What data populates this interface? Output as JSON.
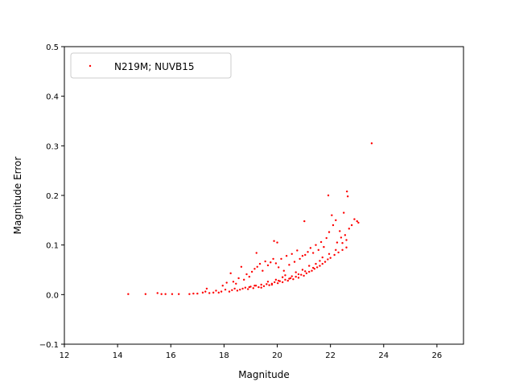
{
  "chart_data": {
    "type": "scatter",
    "title": "",
    "xlabel": "Magnitude",
    "ylabel": "Magnitude Error",
    "xlim": [
      12,
      27
    ],
    "ylim": [
      -0.1,
      0.5
    ],
    "xticks": [
      12,
      14,
      16,
      18,
      20,
      22,
      24,
      26
    ],
    "yticks": [
      -0.1,
      0.0,
      0.1,
      0.2,
      0.3,
      0.4,
      0.5
    ],
    "xtick_labels": [
      "12",
      "14",
      "16",
      "18",
      "20",
      "22",
      "24",
      "26"
    ],
    "ytick_labels": [
      "−0.1",
      "0.0",
      "0.1",
      "0.2",
      "0.3",
      "0.4",
      "0.5"
    ],
    "grid": false,
    "legend": {
      "position": "top-left",
      "entries": [
        "N219M; NUVB15"
      ]
    },
    "series": [
      {
        "name": "N219M; NUVB15",
        "color": "#ff0000",
        "marker": "point",
        "points": [
          [
            14.4,
            0.001
          ],
          [
            15.05,
            0.001
          ],
          [
            15.5,
            0.003
          ],
          [
            15.65,
            0.001
          ],
          [
            15.8,
            0.001
          ],
          [
            16.05,
            0.001
          ],
          [
            16.3,
            0.001
          ],
          [
            16.7,
            0.001
          ],
          [
            16.85,
            0.002
          ],
          [
            17.0,
            0.002
          ],
          [
            17.2,
            0.004
          ],
          [
            17.3,
            0.006
          ],
          [
            17.35,
            0.012
          ],
          [
            17.45,
            0.003
          ],
          [
            17.6,
            0.004
          ],
          [
            17.7,
            0.008
          ],
          [
            17.8,
            0.004
          ],
          [
            17.9,
            0.006
          ],
          [
            17.95,
            0.018
          ],
          [
            18.05,
            0.01
          ],
          [
            18.1,
            0.024
          ],
          [
            18.2,
            0.006
          ],
          [
            18.25,
            0.043
          ],
          [
            18.3,
            0.009
          ],
          [
            18.35,
            0.026
          ],
          [
            18.4,
            0.012
          ],
          [
            18.45,
            0.022
          ],
          [
            18.5,
            0.008
          ],
          [
            18.55,
            0.033
          ],
          [
            18.6,
            0.01
          ],
          [
            18.65,
            0.056
          ],
          [
            18.7,
            0.012
          ],
          [
            18.75,
            0.03
          ],
          [
            18.8,
            0.014
          ],
          [
            18.85,
            0.041
          ],
          [
            18.9,
            0.011
          ],
          [
            18.95,
            0.036
          ],
          [
            19.0,
            0.016
          ],
          [
            19.05,
            0.046
          ],
          [
            19.1,
            0.013
          ],
          [
            19.15,
            0.052
          ],
          [
            19.2,
            0.018
          ],
          [
            19.22,
            0.084
          ],
          [
            19.25,
            0.056
          ],
          [
            19.3,
            0.015
          ],
          [
            19.35,
            0.062
          ],
          [
            19.4,
            0.02
          ],
          [
            19.45,
            0.048
          ],
          [
            19.5,
            0.017
          ],
          [
            19.55,
            0.067
          ],
          [
            19.6,
            0.021
          ],
          [
            19.65,
            0.059
          ],
          [
            19.7,
            0.019
          ],
          [
            19.75,
            0.065
          ],
          [
            19.8,
            0.022
          ],
          [
            19.85,
            0.072
          ],
          [
            19.88,
            0.108
          ],
          [
            19.9,
            0.025
          ],
          [
            19.95,
            0.063
          ],
          [
            20.0,
            0.105
          ],
          [
            20.02,
            0.023
          ],
          [
            20.05,
            0.055
          ],
          [
            20.1,
            0.027
          ],
          [
            20.15,
            0.072
          ],
          [
            20.2,
            0.025
          ],
          [
            20.25,
            0.048
          ],
          [
            20.3,
            0.03
          ],
          [
            20.35,
            0.078
          ],
          [
            20.4,
            0.028
          ],
          [
            20.45,
            0.06
          ],
          [
            20.5,
            0.033
          ],
          [
            20.55,
            0.082
          ],
          [
            20.6,
            0.031
          ],
          [
            20.65,
            0.066
          ],
          [
            20.7,
            0.036
          ],
          [
            20.75,
            0.089
          ],
          [
            20.8,
            0.034
          ],
          [
            20.85,
            0.072
          ],
          [
            20.9,
            0.04
          ],
          [
            20.95,
            0.078
          ],
          [
            21.0,
            0.038
          ],
          [
            21.02,
            0.148
          ],
          [
            21.05,
            0.08
          ],
          [
            21.1,
            0.043
          ],
          [
            21.15,
            0.086
          ],
          [
            21.2,
            0.046
          ],
          [
            21.25,
            0.094
          ],
          [
            21.3,
            0.048
          ],
          [
            21.35,
            0.084
          ],
          [
            21.4,
            0.052
          ],
          [
            21.45,
            0.1
          ],
          [
            21.5,
            0.055
          ],
          [
            21.55,
            0.09
          ],
          [
            21.6,
            0.058
          ],
          [
            21.65,
            0.106
          ],
          [
            21.7,
            0.062
          ],
          [
            21.75,
            0.096
          ],
          [
            21.8,
            0.066
          ],
          [
            21.85,
            0.114
          ],
          [
            21.9,
            0.071
          ],
          [
            21.92,
            0.2
          ],
          [
            21.95,
            0.126
          ],
          [
            22.0,
            0.074
          ],
          [
            22.05,
            0.16
          ],
          [
            22.1,
            0.14
          ],
          [
            22.15,
            0.08
          ],
          [
            22.2,
            0.15
          ],
          [
            22.25,
            0.105
          ],
          [
            22.3,
            0.085
          ],
          [
            22.35,
            0.128
          ],
          [
            22.4,
            0.115
          ],
          [
            22.45,
            0.09
          ],
          [
            22.5,
            0.165
          ],
          [
            22.55,
            0.12
          ],
          [
            22.6,
            0.095
          ],
          [
            22.62,
            0.208
          ],
          [
            22.65,
            0.198
          ],
          [
            22.7,
            0.133
          ],
          [
            22.8,
            0.14
          ],
          [
            22.9,
            0.152
          ],
          [
            23.0,
            0.148
          ],
          [
            23.05,
            0.145
          ],
          [
            23.55,
            0.305
          ],
          [
            18.95,
            0.015
          ],
          [
            19.15,
            0.018
          ],
          [
            19.4,
            0.014
          ],
          [
            19.65,
            0.026
          ],
          [
            19.95,
            0.03
          ],
          [
            20.2,
            0.035
          ],
          [
            20.45,
            0.032
          ],
          [
            20.7,
            0.045
          ],
          [
            20.95,
            0.05
          ],
          [
            21.2,
            0.058
          ],
          [
            21.45,
            0.062
          ],
          [
            21.7,
            0.075
          ],
          [
            21.95,
            0.082
          ],
          [
            22.2,
            0.09
          ],
          [
            22.45,
            0.104
          ],
          [
            22.6,
            0.11
          ],
          [
            21.6,
            0.068
          ],
          [
            21.35,
            0.054
          ],
          [
            21.05,
            0.047
          ],
          [
            20.8,
            0.041
          ],
          [
            20.55,
            0.037
          ],
          [
            20.3,
            0.039
          ],
          [
            20.05,
            0.028
          ],
          [
            19.8,
            0.02
          ]
        ]
      }
    ]
  }
}
